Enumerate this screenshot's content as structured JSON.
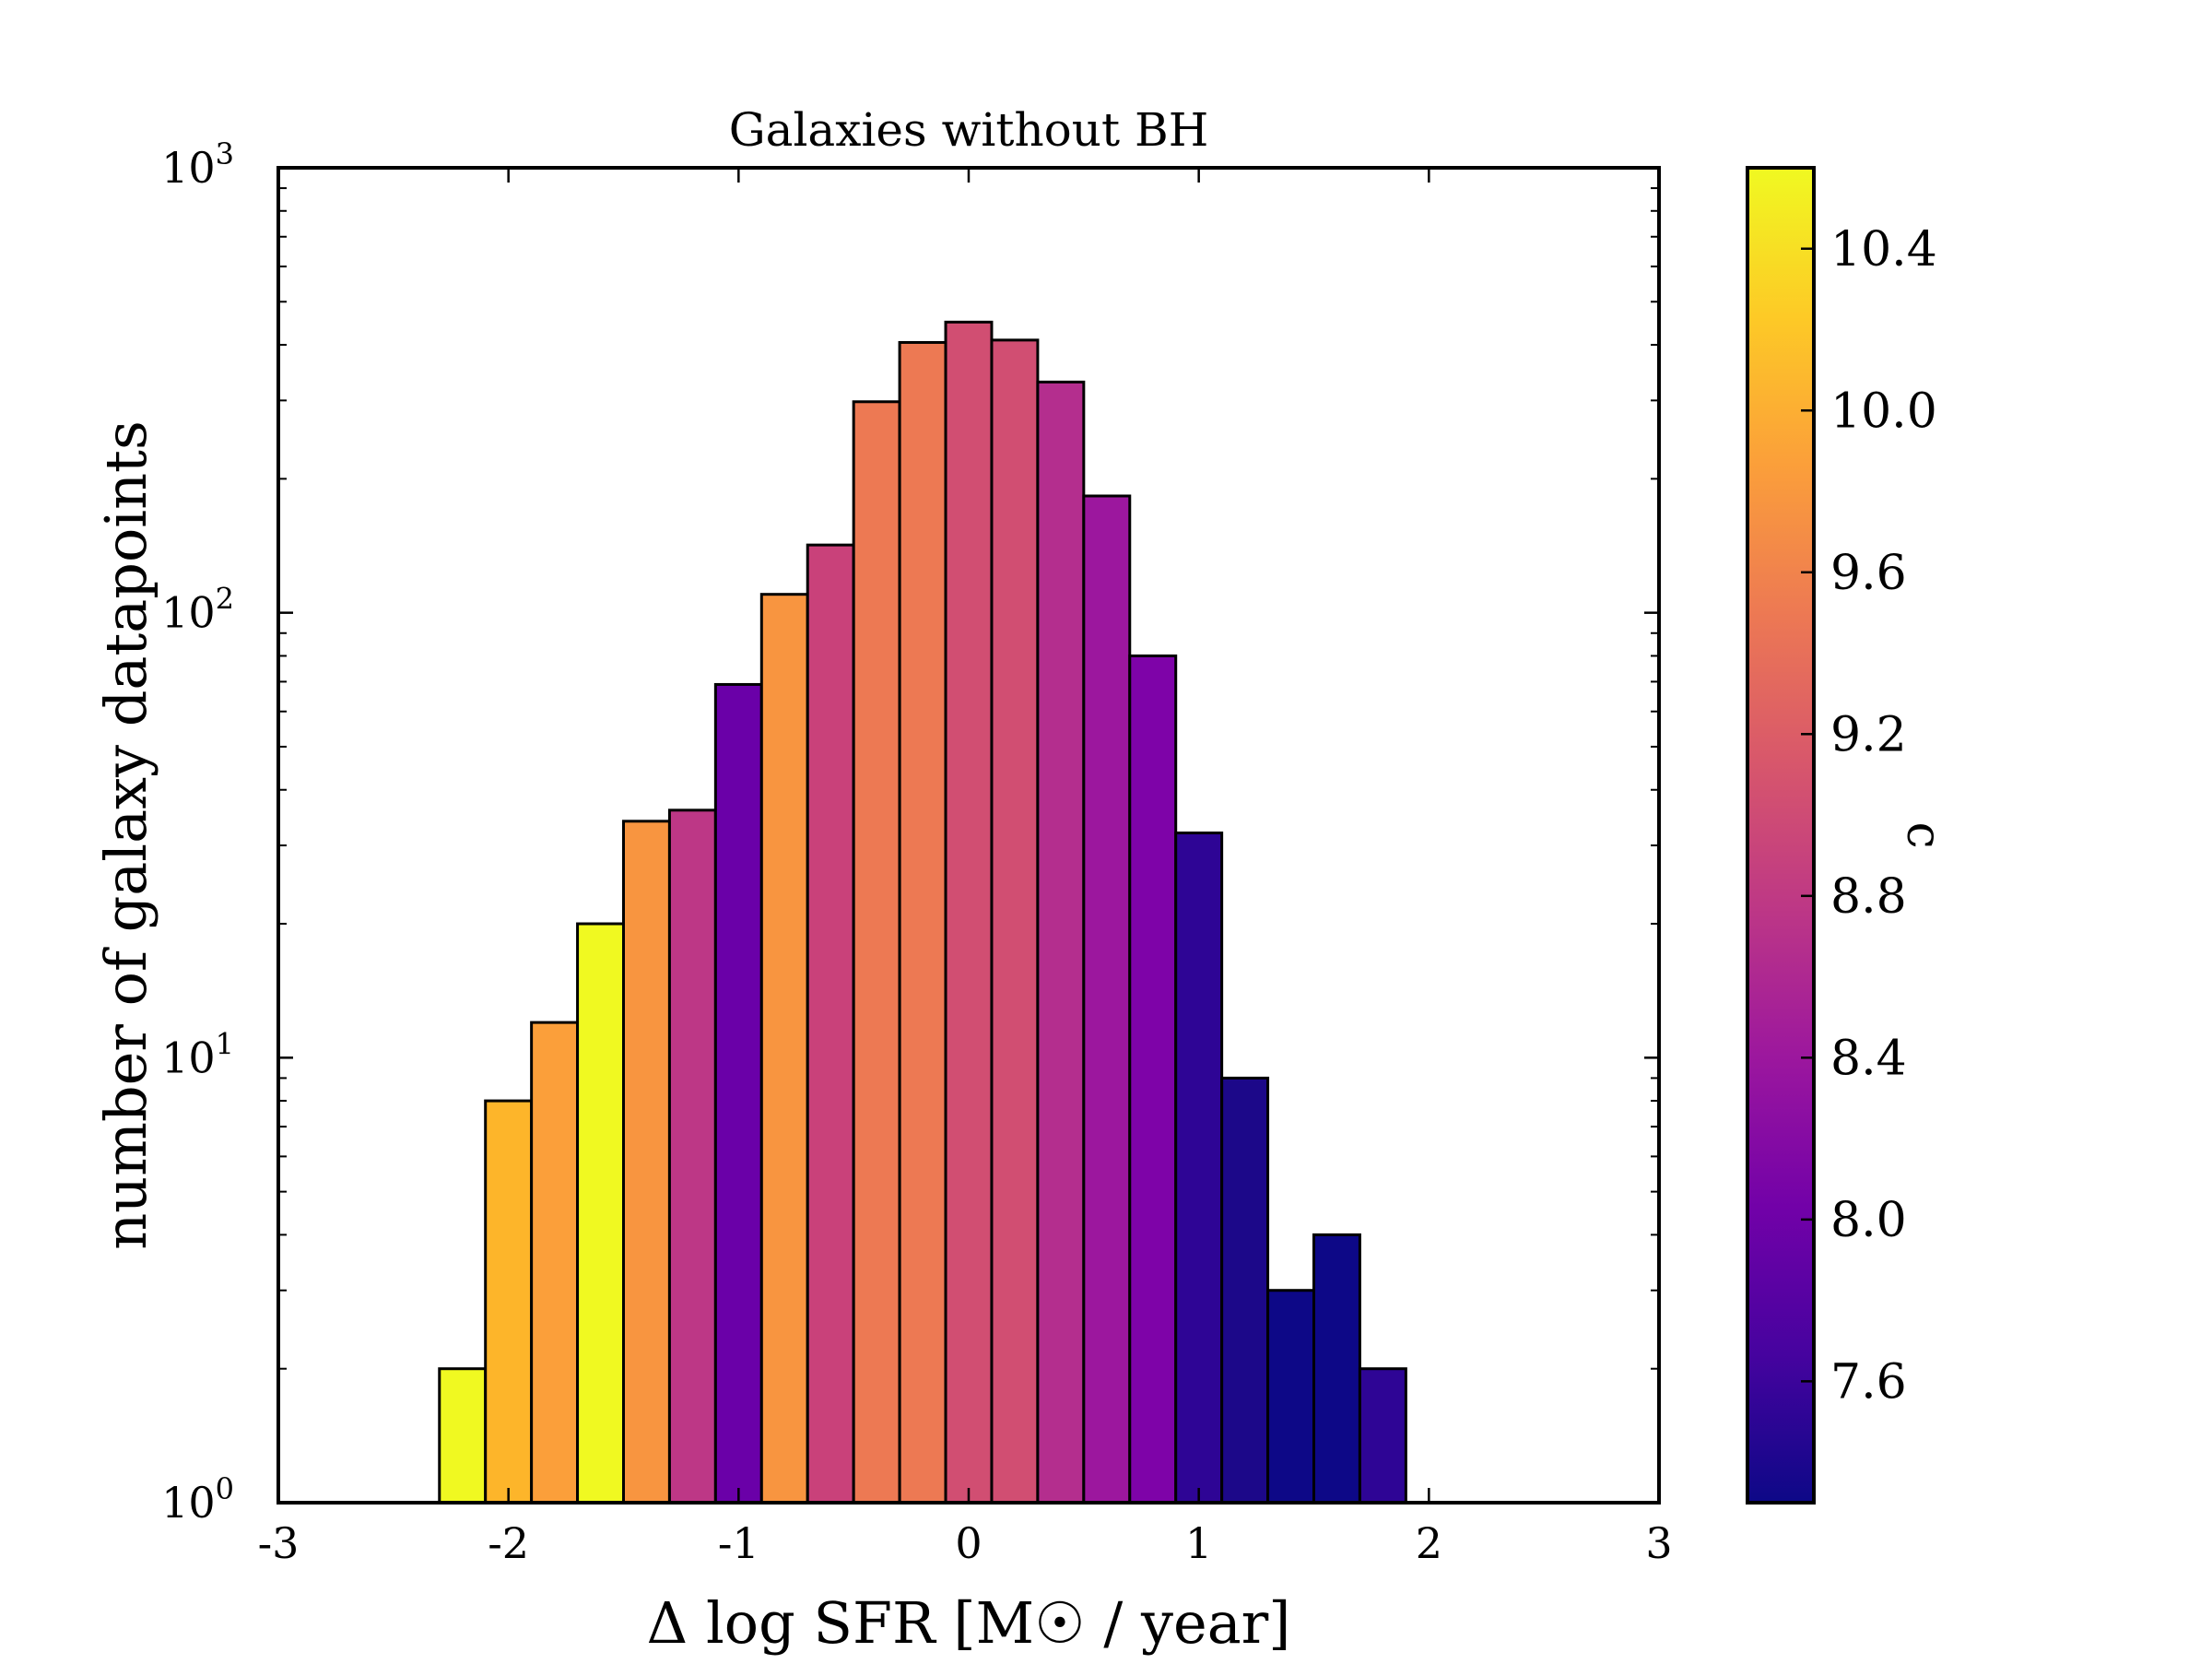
{
  "chart_data": {
    "type": "bar",
    "title": "Galaxies without BH",
    "xlabel": "Δ log SFR [M☉ / year]",
    "ylabel": "number of galaxy datapoints",
    "colorbar_label": "c",
    "xlim": [
      -3,
      3
    ],
    "ylim": [
      1,
      1000
    ],
    "yscale": "log",
    "x_ticks": [
      "-3",
      "-2",
      "-1",
      "0",
      "1",
      "2",
      "3"
    ],
    "y_ticks": [
      {
        "base": "10",
        "exp": "0",
        "value": 1
      },
      {
        "base": "10",
        "exp": "1",
        "value": 10
      },
      {
        "base": "10",
        "exp": "2",
        "value": 100
      },
      {
        "base": "10",
        "exp": "3",
        "value": 1000
      }
    ],
    "colorbar_range": [
      7.3,
      10.6
    ],
    "colorbar_ticks": [
      "7.6",
      "8.0",
      "8.4",
      "8.8",
      "9.2",
      "9.6",
      "10.0",
      "10.4"
    ],
    "colormap": [
      "#0d0887",
      "#46039f",
      "#7201a8",
      "#9c179e",
      "#bd3786",
      "#d8576b",
      "#ed7953",
      "#fb9f3a",
      "#fdca26",
      "#f0f921"
    ],
    "bin_edges": [
      -2.3,
      -2.1,
      -1.9,
      -1.7,
      -1.5,
      -1.3,
      -1.1,
      -0.9,
      -0.7,
      -0.5,
      -0.3,
      -0.1,
      0.1,
      0.3,
      0.5,
      0.7,
      0.9,
      1.1,
      1.3,
      1.5,
      1.7,
      1.9,
      2.1
    ],
    "counts": [
      2,
      8,
      12,
      20,
      34,
      36,
      69,
      110,
      142,
      298,
      405,
      450,
      410,
      330,
      183,
      80,
      32,
      9,
      3,
      4,
      2,
      0
    ],
    "bar_colors": [
      "#f0f921",
      "#fdb52a",
      "#fb9f3a",
      "#f0f921",
      "#f89540",
      "#bd3786",
      "#6a00a8",
      "#f89540",
      "#c9417a",
      "#ed7953",
      "#ed7953",
      "#d14e72",
      "#d14e72",
      "#b42e8e",
      "#9c179e",
      "#7e03a8",
      "#2e0595",
      "#1c0889",
      "#0d0887",
      "#0d0887",
      "#2e0595",
      "#000000"
    ]
  }
}
